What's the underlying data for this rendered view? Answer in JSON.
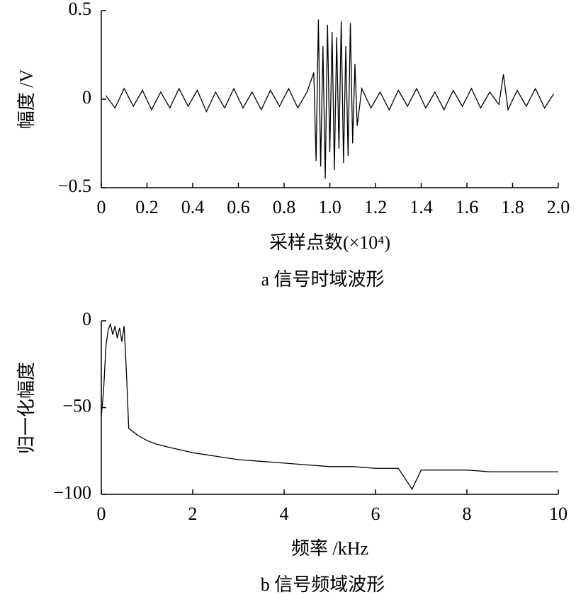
{
  "chart_data": [
    {
      "type": "line",
      "caption": "a 信号时域波形",
      "xlabel": "采样点数(×10⁴)",
      "ylabel": "幅度 /V",
      "color": "#000000",
      "xlim": [
        0,
        2.0
      ],
      "ylim": [
        -0.5,
        0.5
      ],
      "xticks": [
        0,
        0.2,
        0.4,
        0.6,
        0.8,
        {
          "value": 1.0,
          "label": "1.0"
        },
        1.2,
        1.4,
        1.6,
        1.8,
        {
          "value": 2.0,
          "label": "2.0"
        }
      ],
      "yticks": [
        {
          "value": -0.5,
          "label": "−0.5"
        },
        0,
        0.5
      ],
      "x": [
        0.02,
        0.06,
        0.1,
        0.14,
        0.18,
        0.22,
        0.26,
        0.3,
        0.34,
        0.38,
        0.42,
        0.46,
        0.5,
        0.54,
        0.58,
        0.62,
        0.66,
        0.7,
        0.74,
        0.78,
        0.82,
        0.86,
        0.9,
        0.93,
        0.94,
        0.95,
        0.96,
        0.97,
        0.98,
        0.99,
        1.0,
        1.01,
        1.02,
        1.03,
        1.04,
        1.05,
        1.06,
        1.07,
        1.08,
        1.09,
        1.1,
        1.11,
        1.12,
        1.14,
        1.18,
        1.22,
        1.26,
        1.3,
        1.34,
        1.38,
        1.42,
        1.46,
        1.5,
        1.54,
        1.58,
        1.62,
        1.66,
        1.7,
        1.74,
        1.76,
        1.78,
        1.82,
        1.86,
        1.9,
        1.94,
        1.98
      ],
      "values": [
        0.02,
        -0.05,
        0.06,
        -0.04,
        0.05,
        -0.06,
        0.04,
        -0.05,
        0.06,
        -0.04,
        0.05,
        -0.07,
        0.04,
        -0.05,
        0.06,
        -0.05,
        0.04,
        -0.06,
        0.05,
        -0.04,
        0.06,
        -0.05,
        0.04,
        0.15,
        -0.35,
        0.45,
        -0.38,
        0.3,
        -0.45,
        0.42,
        -0.3,
        0.38,
        -0.4,
        0.35,
        -0.28,
        0.44,
        -0.36,
        0.3,
        -0.32,
        0.43,
        -0.25,
        0.2,
        -0.15,
        0.06,
        -0.05,
        0.04,
        -0.06,
        0.05,
        -0.04,
        0.06,
        -0.05,
        0.04,
        -0.06,
        0.05,
        -0.04,
        0.06,
        -0.05,
        0.04,
        -0.03,
        0.14,
        -0.06,
        0.05,
        -0.04,
        0.06,
        -0.05,
        0.03
      ]
    },
    {
      "type": "line",
      "caption": "b 信号频域波形",
      "xlabel": "频率 /kHz",
      "ylabel": "归一化幅度",
      "color": "#000000",
      "xlim": [
        0,
        10
      ],
      "ylim": [
        -100,
        0
      ],
      "xticks": [
        0,
        2,
        4,
        6,
        8,
        10
      ],
      "yticks": [
        {
          "value": -100,
          "label": "−100"
        },
        {
          "value": -50,
          "label": "−50"
        },
        0
      ],
      "x": [
        0,
        0.05,
        0.1,
        0.15,
        0.2,
        0.25,
        0.3,
        0.35,
        0.4,
        0.45,
        0.5,
        0.55,
        0.6,
        0.7,
        0.8,
        1,
        1.2,
        1.5,
        2,
        2.5,
        3,
        3.5,
        4,
        4.5,
        5,
        5.5,
        6,
        6.5,
        6.8,
        7,
        7.5,
        8,
        8.5,
        9,
        9.5,
        10
      ],
      "values": [
        -55,
        -40,
        -15,
        -5,
        -2,
        -8,
        -3,
        -10,
        -4,
        -12,
        -3,
        -30,
        -62,
        -64,
        -66,
        -69,
        -71,
        -73,
        -76,
        -78,
        -80,
        -81,
        -82,
        -83,
        -84,
        -84,
        -85,
        -85,
        -97,
        -86,
        -86,
        -86,
        -87,
        -87,
        -87,
        -87
      ]
    }
  ]
}
